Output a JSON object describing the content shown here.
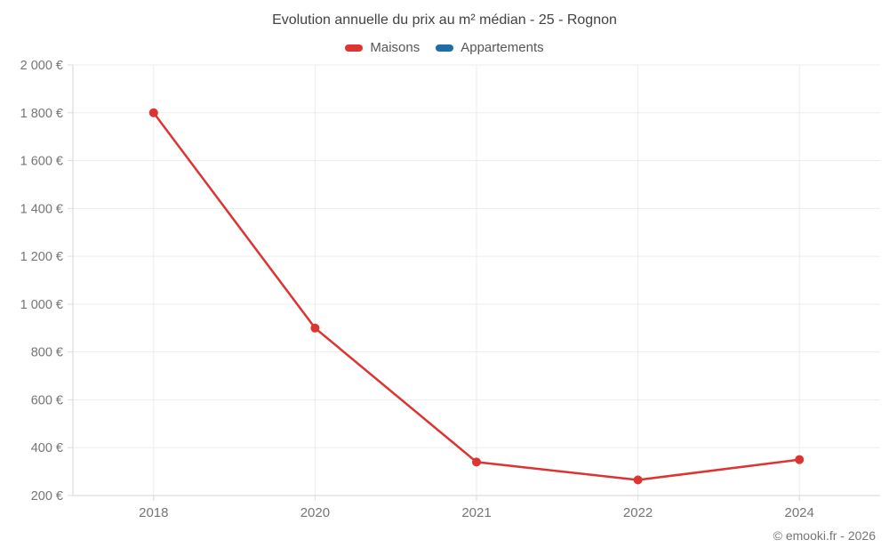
{
  "title": "Evolution annuelle du prix au m² médian - 25 - Rognon",
  "footer": "© emooki.fr - 2026",
  "colors": {
    "maisons": "#dd3431",
    "appartements": "#1c6ea4",
    "grid": "#ededed",
    "axis": "#d6d6d6",
    "tick": "#dcdcdc",
    "tick_label": "#757575",
    "title_text": "#424242",
    "legend_text": "#565656"
  },
  "chart_data": {
    "type": "line",
    "categories": [
      "2018",
      "2020",
      "2021",
      "2022",
      "2024"
    ],
    "series": [
      {
        "name": "Maisons",
        "color": "#dd3431",
        "values": [
          1800,
          900,
          340,
          265,
          350
        ]
      },
      {
        "name": "Appartements",
        "color": "#1c6ea4",
        "values": []
      }
    ],
    "title": "Evolution annuelle du prix au m² médian - 25 - Rognon",
    "xlabel": "",
    "ylabel": "",
    "ylim": [
      200,
      2000
    ],
    "yticks": [
      200,
      400,
      600,
      800,
      1000,
      1200,
      1400,
      1600,
      1800,
      2000
    ],
    "ytick_labels": [
      "200 €",
      "400 €",
      "600 €",
      "800 €",
      "1 000 €",
      "1 200 €",
      "1 400 €",
      "1 600 €",
      "1 800 €",
      "2 000 €"
    ],
    "grid": true,
    "legend_position": "top",
    "marker_radius": 5,
    "line_width": 2.5
  }
}
